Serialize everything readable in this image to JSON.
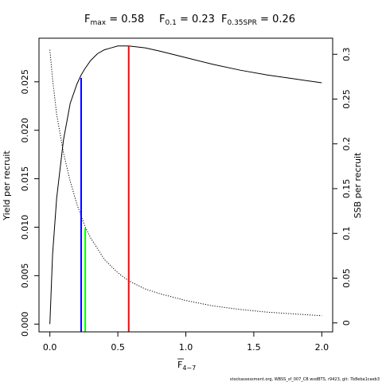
{
  "chart_data": {
    "type": "line",
    "title": {
      "fmax": {
        "label": "F",
        "sub": "max",
        "value": "0.58"
      },
      "f01": {
        "label": "F",
        "sub": "0.1",
        "value": "0.23"
      },
      "f035": {
        "label": "F",
        "sub": "0.35SPR",
        "value": "0.26"
      }
    },
    "xlabel": {
      "main": "F",
      "sub": "4−7"
    },
    "ylabel_left": "Yield per recruit",
    "ylabel_right": "SSB per recruit",
    "xlim": [
      -0.08,
      2.08
    ],
    "ylim_left": [
      -0.0008,
      0.0295
    ],
    "ylim_right": [
      -0.01,
      0.318
    ],
    "x_ticks": [
      "0.0",
      "0.5",
      "1.0",
      "1.5",
      "2.0"
    ],
    "x_tick_values": [
      0,
      0.5,
      1.0,
      1.5,
      2.0
    ],
    "y_left_ticks": [
      "0.000",
      "0.005",
      "0.010",
      "0.015",
      "0.020",
      "0.025"
    ],
    "y_left_tick_values": [
      0,
      0.005,
      0.01,
      0.015,
      0.02,
      0.025
    ],
    "y_right_ticks": [
      "0",
      "0.05",
      "0.1",
      "0.15",
      "0.2",
      "0.25",
      "0.3"
    ],
    "y_right_tick_values": [
      0,
      0.05,
      0.1,
      0.15,
      0.2,
      0.25,
      0.3
    ],
    "series": [
      {
        "axis": "left",
        "style": "solid",
        "x": [
          0,
          0.02,
          0.05,
          0.1,
          0.15,
          0.2,
          0.23,
          0.26,
          0.3,
          0.35,
          0.4,
          0.45,
          0.5,
          0.58,
          0.7,
          0.8,
          1.0,
          1.2,
          1.4,
          1.6,
          1.8,
          2.0
        ],
        "y": [
          0,
          0.0072,
          0.013,
          0.019,
          0.0228,
          0.0248,
          0.0257,
          0.0264,
          0.0272,
          0.0279,
          0.0283,
          0.0285,
          0.0287,
          0.0287,
          0.0285,
          0.0282,
          0.0275,
          0.0268,
          0.0262,
          0.0257,
          0.0253,
          0.0249
        ]
      },
      {
        "axis": "right",
        "style": "dotted",
        "x": [
          0,
          0.02,
          0.05,
          0.1,
          0.15,
          0.2,
          0.26,
          0.3,
          0.4,
          0.5,
          0.58,
          0.7,
          0.8,
          1.0,
          1.2,
          1.4,
          1.6,
          1.8,
          2.0
        ],
        "y": [
          0.305,
          0.272,
          0.233,
          0.19,
          0.158,
          0.132,
          0.107,
          0.095,
          0.071,
          0.056,
          0.047,
          0.038,
          0.033,
          0.025,
          0.019,
          0.015,
          0.012,
          0.01,
          0.008
        ]
      }
    ],
    "reference_lines": [
      {
        "name": "F0.1",
        "x": 0.23,
        "y_top": 0.0254,
        "axis": "left",
        "color": "#0000ff"
      },
      {
        "name": "F0.35SPR",
        "x": 0.26,
        "y_top": 0.0099,
        "axis": "left",
        "color": "#00ff00"
      },
      {
        "name": "Fmax",
        "x": 0.58,
        "y_top": 0.0287,
        "axis": "left",
        "color": "#ff0000"
      }
    ],
    "grid": false,
    "legend": "none"
  },
  "footer": "stockassessment.org, WBSS_sf_007_CB wsdBTS, r9423, git: 7b8eba1caeb3"
}
